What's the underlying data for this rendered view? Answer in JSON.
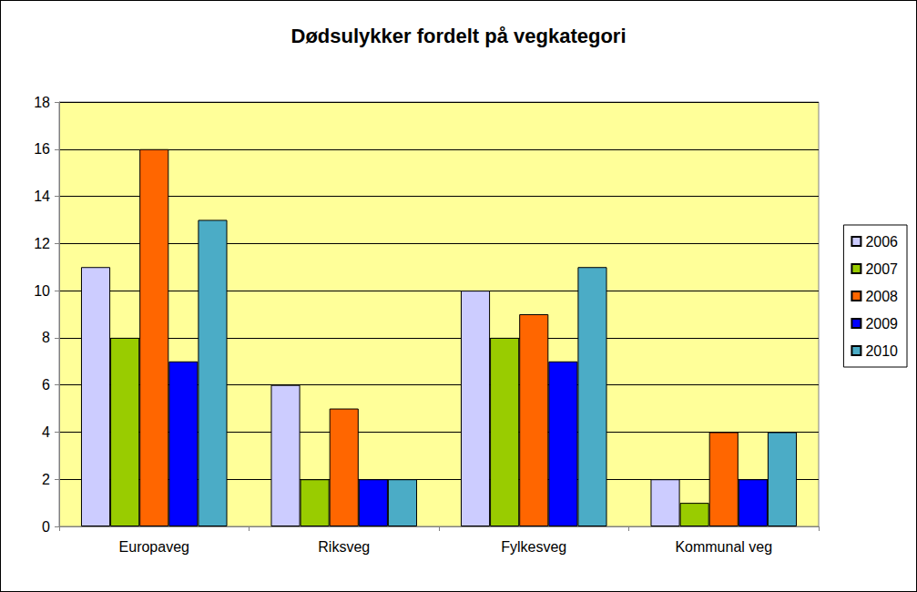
{
  "chart_data": {
    "type": "bar",
    "title": "Dødsulykker fordelt på vegkategori",
    "categories": [
      "Europaveg",
      "Riksveg",
      "Fylkesveg",
      "Kommunal veg"
    ],
    "series": [
      {
        "name": "2006",
        "color": "#ccccff",
        "values": [
          11,
          6,
          10,
          2
        ]
      },
      {
        "name": "2007",
        "color": "#99cc00",
        "values": [
          8,
          2,
          8,
          1
        ]
      },
      {
        "name": "2008",
        "color": "#ff6600",
        "values": [
          16,
          5,
          9,
          4
        ]
      },
      {
        "name": "2009",
        "color": "#0000ff",
        "values": [
          7,
          2,
          7,
          2
        ]
      },
      {
        "name": "2010",
        "color": "#4bacc6",
        "values": [
          13,
          2,
          11,
          4
        ]
      }
    ],
    "ylim": [
      0,
      18
    ],
    "yticks": [
      0,
      2,
      4,
      6,
      8,
      10,
      12,
      14,
      16,
      18
    ],
    "grid": true,
    "legend": "right"
  }
}
